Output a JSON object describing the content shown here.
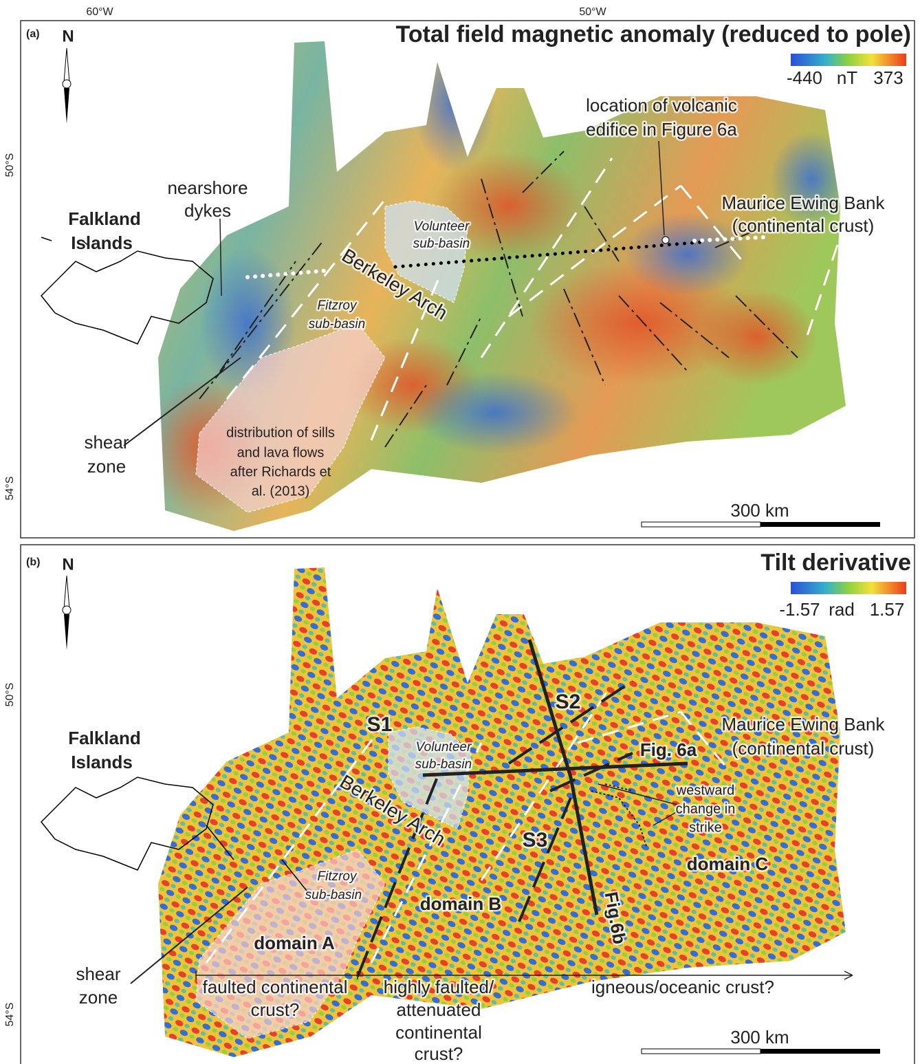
{
  "lon_labels": [
    "60°W",
    "50°W"
  ],
  "panels": [
    {
      "label": "(a)",
      "north": "N",
      "title": "Total field magnetic anomaly (reduced to pole)",
      "colorbar": {
        "min": -440,
        "unit": "nT",
        "max": 373
      },
      "lat_labels": [
        "50°S",
        "54°S"
      ],
      "scale_bar": "300 km",
      "annotations": {
        "volcanic_edifice": [
          "location of volcanic",
          "edifice in Figure 6a"
        ],
        "nearshore_dykes": [
          "nearshore",
          "dykes"
        ],
        "falkland_islands": [
          "Falkland",
          "Islands"
        ],
        "maurice_ewing_bank": [
          "Maurice Ewing Bank",
          "(continental crust)"
        ],
        "volunteer_sub_basin": [
          "Volunteer",
          "sub-basin"
        ],
        "berkeley_arch": "Berkeley Arch",
        "fitzroy_sub_basin": [
          "Fitzroy",
          "sub-basin"
        ],
        "shear_zone": [
          "shear",
          "zone"
        ],
        "sills_distribution": [
          "distribution of sills",
          "and lava flows",
          "after Richards et",
          "al. (2013)"
        ]
      }
    },
    {
      "label": "(b)",
      "north": "N",
      "title": "Tilt derivative",
      "colorbar": {
        "min": -1.57,
        "unit": "rad",
        "max": 1.57
      },
      "lat_labels": [
        "50°S",
        "54°S"
      ],
      "scale_bar": "300 km",
      "annotations": {
        "falkland_islands": [
          "Falkland",
          "Islands"
        ],
        "s1": "S1",
        "s2": "S2",
        "s3": "S3",
        "fig_6a": "Fig. 6a",
        "fig_6b": "Fig.6b",
        "volunteer_sub_basin": [
          "Volunteer",
          "sub-basin"
        ],
        "maurice_ewing_bank": [
          "Maurice Ewing Bank",
          "(continental crust)"
        ],
        "westward_change": [
          "westward",
          "change in",
          "strike"
        ],
        "berkeley_arch": "Berkeley Arch",
        "fitzroy_sub_basin": [
          "Fitzroy",
          "sub-basin"
        ],
        "domain_a": "domain A",
        "domain_b": "domain B",
        "domain_c": "domain C",
        "shear_zone": [
          "shear",
          "zone"
        ],
        "faulted_continental": [
          "faulted continental",
          "crust?"
        ],
        "highly_faulted": [
          "highly faulted/",
          "attenuated",
          "continental",
          "crust?"
        ],
        "igneous_oceanic": "igneous/oceanic crust?"
      }
    }
  ]
}
